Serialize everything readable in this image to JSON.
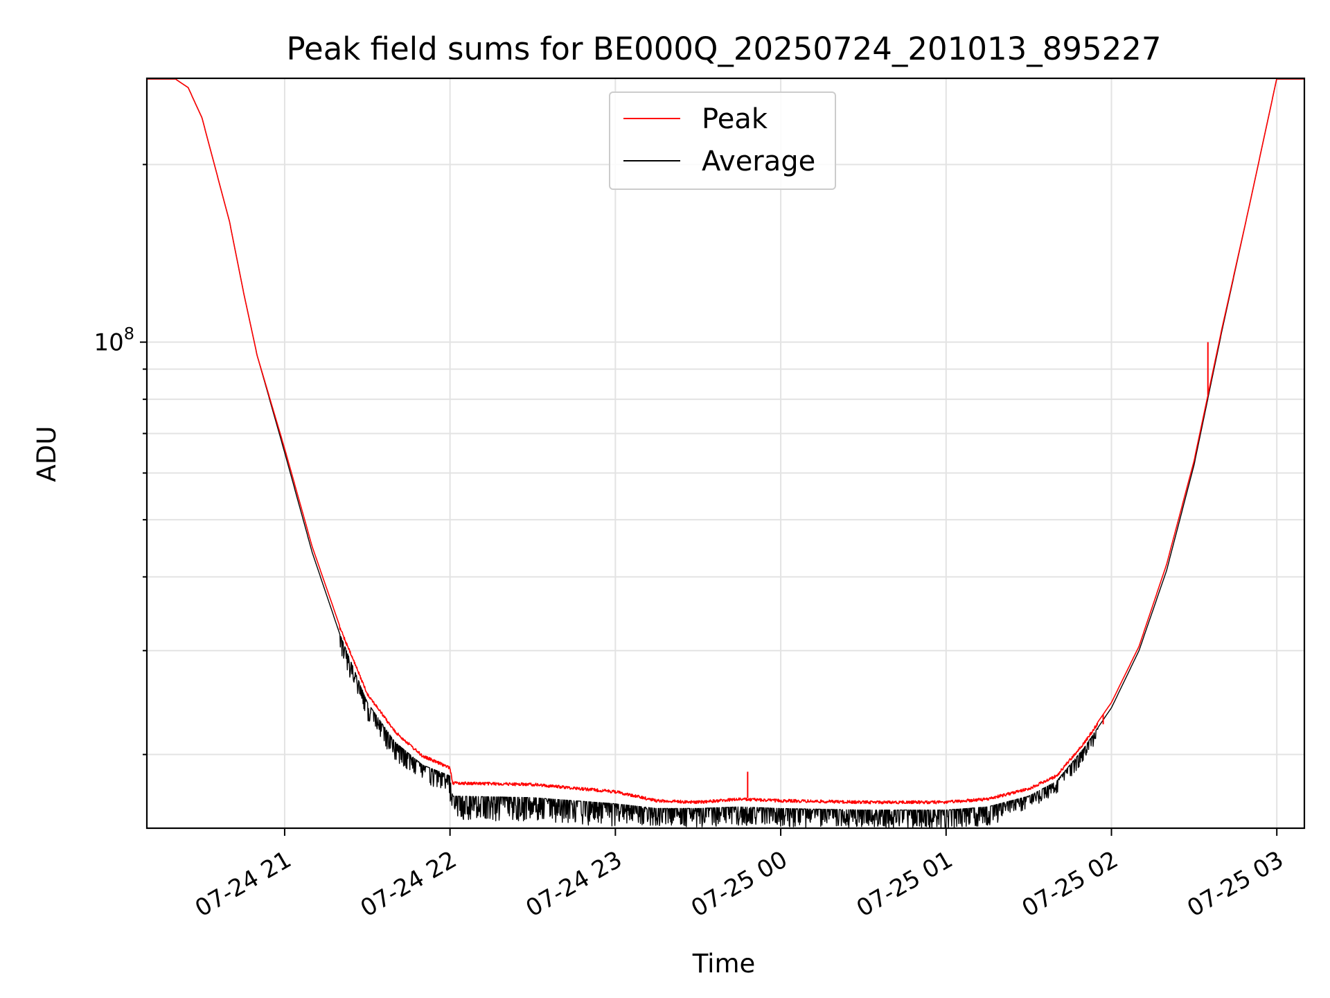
{
  "chart_data": {
    "type": "line",
    "title": "Peak field sums for BE000Q_20250724_201013_895227",
    "xlabel": "Time",
    "ylabel": "ADU",
    "y_scale": "log",
    "y_tick_base": "10",
    "y_tick_exponent": "8",
    "xlim": [
      "2025-07-24 20:10",
      "2025-07-25 03:10"
    ],
    "ylim": [
      15000000,
      280000000
    ],
    "x_ticks": [
      "07-24 21",
      "07-24 22",
      "07-24 23",
      "07-25 00",
      "07-25 01",
      "07-25 02",
      "07-25 03"
    ],
    "x_tick_times": [
      "2025-07-24 21:00",
      "2025-07-24 22:00",
      "2025-07-24 23:00",
      "2025-07-25 00:00",
      "2025-07-25 01:00",
      "2025-07-25 02:00",
      "2025-07-25 03:00"
    ],
    "grid": true,
    "legend_position": "upper center",
    "series": [
      {
        "name": "Peak",
        "color": "#ff0000",
        "points": [
          [
            "2025-07-24 20:10",
            280000000
          ],
          [
            "2025-07-24 20:20",
            280000000
          ],
          [
            "2025-07-24 20:25",
            270000000
          ],
          [
            "2025-07-24 20:30",
            240000000
          ],
          [
            "2025-07-24 20:40",
            160000000
          ],
          [
            "2025-07-24 20:45",
            122000000
          ],
          [
            "2025-07-24 20:50",
            95000000
          ],
          [
            "2025-07-24 21:00",
            66000000
          ],
          [
            "2025-07-24 21:10",
            45000000
          ],
          [
            "2025-07-24 21:20",
            33000000
          ],
          [
            "2025-07-24 21:30",
            25500000
          ],
          [
            "2025-07-24 21:40",
            22000000
          ],
          [
            "2025-07-24 21:50",
            20000000
          ],
          [
            "2025-07-24 22:00",
            19100000
          ],
          [
            "2025-07-24 22:01",
            18000000
          ],
          [
            "2025-07-24 22:30",
            17900000
          ],
          [
            "2025-07-24 23:00",
            17400000
          ],
          [
            "2025-07-24 23:15",
            16800000
          ],
          [
            "2025-07-24 23:30",
            16700000
          ],
          [
            "2025-07-24 23:45",
            16900000
          ],
          [
            "2025-07-25 00:00",
            16800000
          ],
          [
            "2025-07-25 00:30",
            16700000
          ],
          [
            "2025-07-25 01:00",
            16700000
          ],
          [
            "2025-07-25 01:15",
            16900000
          ],
          [
            "2025-07-25 01:30",
            17600000
          ],
          [
            "2025-07-25 01:40",
            18500000
          ],
          [
            "2025-07-25 01:50",
            21000000
          ],
          [
            "2025-07-25 02:00",
            24500000
          ],
          [
            "2025-07-25 02:10",
            30500000
          ],
          [
            "2025-07-25 02:20",
            42000000
          ],
          [
            "2025-07-25 02:30",
            63000000
          ],
          [
            "2025-07-25 02:40",
            105000000
          ],
          [
            "2025-07-25 02:50",
            170000000
          ],
          [
            "2025-07-25 03:00",
            280000000
          ],
          [
            "2025-07-25 03:10",
            280000000
          ]
        ],
        "spikes": [
          [
            "2025-07-24 23:48",
            18700000
          ],
          [
            "2025-07-25 01:57",
            22500000
          ],
          [
            "2025-07-25 02:35",
            100000000
          ]
        ]
      },
      {
        "name": "Average",
        "color": "#000000",
        "points": [
          [
            "2025-07-24 20:10",
            280000000
          ],
          [
            "2025-07-24 20:20",
            280000000
          ],
          [
            "2025-07-24 20:25",
            270000000
          ],
          [
            "2025-07-24 20:30",
            240000000
          ],
          [
            "2025-07-24 20:40",
            160000000
          ],
          [
            "2025-07-24 20:45",
            122000000
          ],
          [
            "2025-07-24 20:50",
            95000000
          ],
          [
            "2025-07-24 21:00",
            65000000
          ],
          [
            "2025-07-24 21:10",
            44000000
          ],
          [
            "2025-07-24 21:20",
            32000000
          ],
          [
            "2025-07-24 21:30",
            24500000
          ],
          [
            "2025-07-24 21:40",
            21000000
          ],
          [
            "2025-07-24 21:50",
            19200000
          ],
          [
            "2025-07-24 22:00",
            18400000
          ],
          [
            "2025-07-24 22:01",
            17000000
          ],
          [
            "2025-07-24 22:30",
            16900000
          ],
          [
            "2025-07-24 23:00",
            16500000
          ],
          [
            "2025-07-24 23:15",
            16200000
          ],
          [
            "2025-07-24 23:30",
            16200000
          ],
          [
            "2025-07-24 23:45",
            16300000
          ],
          [
            "2025-07-25 00:00",
            16200000
          ],
          [
            "2025-07-25 00:30",
            16100000
          ],
          [
            "2025-07-25 01:00",
            16100000
          ],
          [
            "2025-07-25 01:15",
            16300000
          ],
          [
            "2025-07-25 01:30",
            17000000
          ],
          [
            "2025-07-25 01:40",
            18000000
          ],
          [
            "2025-07-25 01:50",
            20500000
          ],
          [
            "2025-07-25 02:00",
            24000000
          ],
          [
            "2025-07-25 02:10",
            30000000
          ],
          [
            "2025-07-25 02:20",
            41000000
          ],
          [
            "2025-07-25 02:30",
            62000000
          ],
          [
            "2025-07-25 02:40",
            104000000
          ],
          [
            "2025-07-25 02:50",
            170000000
          ],
          [
            "2025-07-25 03:00",
            280000000
          ],
          [
            "2025-07-25 03:10",
            280000000
          ]
        ],
        "noise_dips": [
          [
            "2025-07-24 21:20",
            "2025-07-24 22:00",
            0.07
          ],
          [
            "2025-07-24 22:00",
            "2025-07-24 23:00",
            0.09
          ],
          [
            "2025-07-24 23:00",
            "2025-07-25 01:20",
            0.07
          ],
          [
            "2025-07-25 01:20",
            "2025-07-25 01:55",
            0.05
          ]
        ]
      }
    ]
  }
}
